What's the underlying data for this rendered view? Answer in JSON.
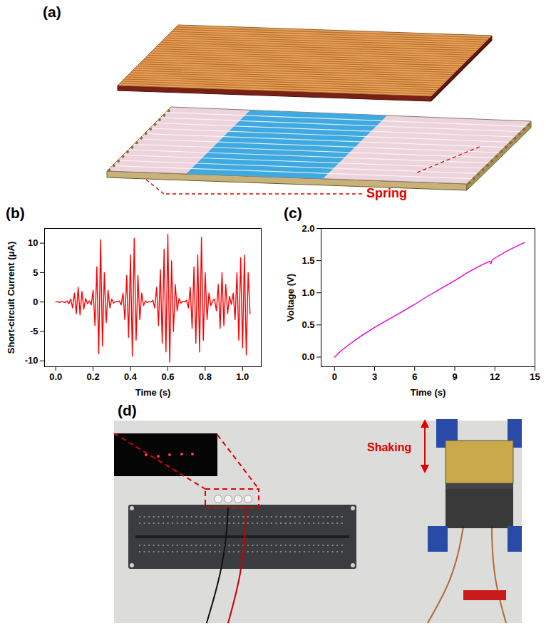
{
  "panel_labels": {
    "a": "(a)",
    "b": "(b)",
    "c": "(c)",
    "d": "(d)"
  },
  "diagram": {
    "annotation": "Spring"
  },
  "photo": {
    "annotation": "Shaking"
  },
  "chart_data": [
    {
      "type": "line",
      "color": "#ff0000",
      "x_label": "Time (s)",
      "y_label": "Short-circuit Current (μA)",
      "xlim": [
        -0.06,
        1.1
      ],
      "ylim": [
        -11,
        12.5
      ],
      "xticks": [
        {
          "value": 0,
          "label": "0.0"
        },
        {
          "value": 0.2,
          "label": "0.2"
        },
        {
          "value": 0.4,
          "label": "0.4"
        },
        {
          "value": 0.6,
          "label": "0.6"
        },
        {
          "value": 0.8,
          "label": "0.8"
        },
        {
          "value": 1,
          "label": "1.0"
        }
      ],
      "yticks": [
        -10,
        -5,
        0,
        5,
        10
      ],
      "x": [
        0,
        0.01,
        0.02,
        0.03,
        0.04,
        0.05,
        0.06,
        0.07,
        0.08,
        0.09,
        0.1,
        0.11,
        0.12,
        0.13,
        0.14,
        0.15,
        0.16,
        0.17,
        0.18,
        0.19,
        0.2,
        0.21,
        0.22,
        0.23,
        0.24,
        0.25,
        0.26,
        0.27,
        0.28,
        0.29,
        0.3,
        0.31,
        0.32,
        0.33,
        0.34,
        0.35,
        0.36,
        0.37,
        0.38,
        0.39,
        0.4,
        0.41,
        0.42,
        0.43,
        0.44,
        0.45,
        0.46,
        0.47,
        0.48,
        0.49,
        0.5,
        0.51,
        0.52,
        0.53,
        0.54,
        0.55,
        0.56,
        0.57,
        0.58,
        0.59,
        0.6,
        0.61,
        0.62,
        0.63,
        0.64,
        0.65,
        0.66,
        0.67,
        0.68,
        0.69,
        0.7,
        0.71,
        0.72,
        0.73,
        0.74,
        0.75,
        0.76,
        0.77,
        0.78,
        0.79,
        0.8,
        0.81,
        0.82,
        0.83,
        0.84,
        0.85,
        0.86,
        0.87,
        0.88,
        0.89,
        0.9,
        0.91,
        0.92,
        0.93,
        0.94,
        0.95,
        0.96,
        0.97,
        0.98,
        0.99,
        1,
        1.01,
        1.02,
        1.03,
        1.04
      ],
      "values": [
        0,
        0.1,
        -0.1,
        0.1,
        0,
        -0.1,
        0.2,
        -0.3,
        0.5,
        -1.0,
        1.5,
        -2.0,
        2.5,
        -2.2,
        1.8,
        -1.2,
        0.6,
        -0.3,
        0.2,
        -0.5,
        2.0,
        -4.0,
        6.0,
        -8.8,
        10.6,
        -7.5,
        5.0,
        -3.5,
        2.0,
        -1.0,
        0.5,
        -0.2,
        0.1,
        0,
        0.2,
        -0.5,
        1.5,
        -3.0,
        4.5,
        -6.0,
        8.0,
        -9.2,
        10.8,
        -6.5,
        4.5,
        -3.0,
        1.5,
        -0.6,
        0.2,
        -0.1,
        0.1,
        0,
        0.3,
        -1.0,
        2.5,
        -4.0,
        5.5,
        -7.0,
        9.0,
        -8.5,
        11.5,
        -10.2,
        7.0,
        -5.0,
        3.0,
        -1.5,
        0.6,
        -0.2,
        0.1,
        0,
        0.3,
        -1.0,
        2.5,
        -4.5,
        6.0,
        -7.0,
        8.0,
        -8.5,
        11.0,
        -6.5,
        5.0,
        -3.0,
        1.5,
        -0.6,
        0.2,
        0.5,
        -1.5,
        3.0,
        -4.5,
        5.0,
        -4.0,
        3.0,
        -2.0,
        1.0,
        -0.4,
        1.5,
        -3.0,
        5.0,
        -6.5,
        7.5,
        -7.8,
        8.0,
        -9.0,
        5.0,
        -2.0
      ]
    },
    {
      "type": "line",
      "color": "#e000e0",
      "x_label": "Time (s)",
      "y_label": "Voltage (V)",
      "xlim": [
        -1,
        15
      ],
      "ylim": [
        -0.15,
        2.0
      ],
      "xticks": [
        0,
        3,
        6,
        9,
        12,
        15
      ],
      "yticks": [
        {
          "value": 0,
          "label": "0.0"
        },
        {
          "value": 0.5,
          "label": "0.5"
        },
        {
          "value": 1,
          "label": "1.0"
        },
        {
          "value": 1.5,
          "label": "1.5"
        },
        {
          "value": 2,
          "label": "2.0"
        }
      ],
      "x": [
        0,
        0.5,
        1,
        2,
        3,
        4,
        5,
        6,
        7,
        8,
        9,
        10,
        11,
        11.6,
        11.7,
        11.8,
        12,
        13,
        14,
        14.2
      ],
      "values": [
        0,
        0.1,
        0.18,
        0.33,
        0.46,
        0.58,
        0.7,
        0.82,
        0.95,
        1.07,
        1.19,
        1.32,
        1.43,
        1.49,
        1.45,
        1.51,
        1.54,
        1.66,
        1.76,
        1.78
      ]
    }
  ]
}
